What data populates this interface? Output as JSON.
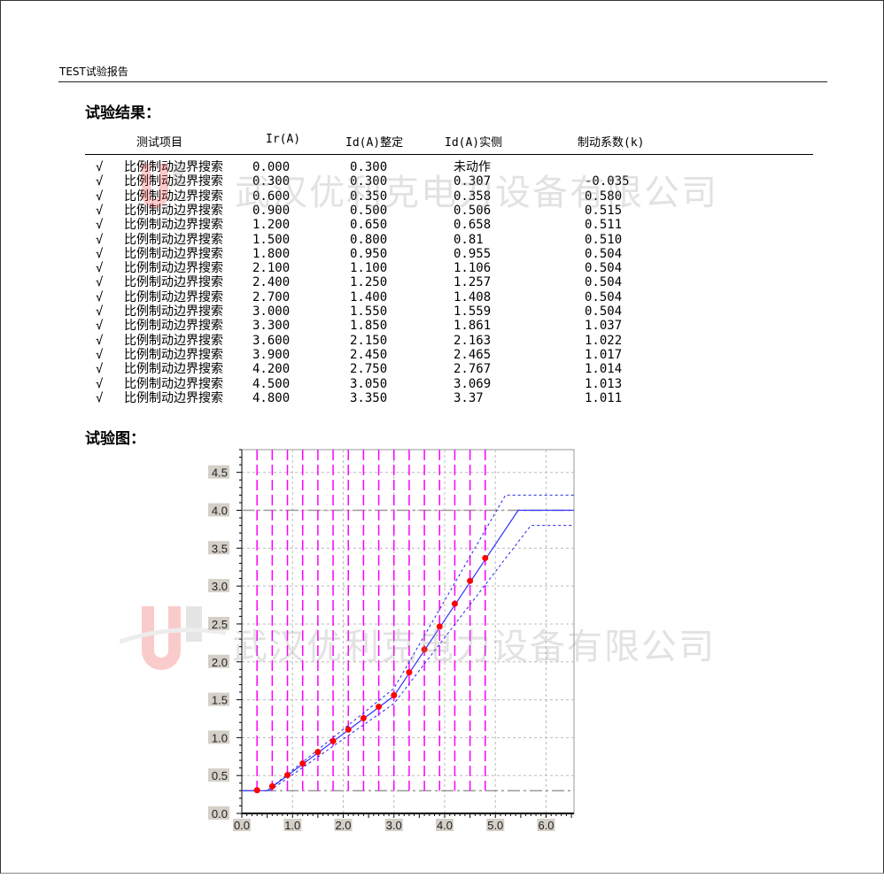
{
  "header": {
    "title": "TEST试验报告"
  },
  "results": {
    "heading": "试验结果：",
    "columns": [
      "测试项目",
      "Ir(A)",
      "Id(A)整定",
      "Id(A)实侧",
      "制动系数(k)"
    ],
    "rows": [
      {
        "check": "√",
        "item": "比例制动边界搜索",
        "ir": "0.000",
        "id_set": "0.300",
        "id_actual": "未动作",
        "k": ""
      },
      {
        "check": "√",
        "item": "比例制动边界搜索",
        "ir": "0.300",
        "id_set": "0.300",
        "id_actual": "0.307",
        "k": "-0.035"
      },
      {
        "check": "√",
        "item": "比例制动边界搜索",
        "ir": "0.600",
        "id_set": "0.350",
        "id_actual": "0.358",
        "k": "0.580"
      },
      {
        "check": "√",
        "item": "比例制动边界搜索",
        "ir": "0.900",
        "id_set": "0.500",
        "id_actual": "0.506",
        "k": "0.515"
      },
      {
        "check": "√",
        "item": "比例制动边界搜索",
        "ir": "1.200",
        "id_set": "0.650",
        "id_actual": "0.658",
        "k": "0.511"
      },
      {
        "check": "√",
        "item": "比例制动边界搜索",
        "ir": "1.500",
        "id_set": "0.800",
        "id_actual": "0.81",
        "k": "0.510"
      },
      {
        "check": "√",
        "item": "比例制动边界搜索",
        "ir": "1.800",
        "id_set": "0.950",
        "id_actual": "0.955",
        "k": "0.504"
      },
      {
        "check": "√",
        "item": "比例制动边界搜索",
        "ir": "2.100",
        "id_set": "1.100",
        "id_actual": "1.106",
        "k": "0.504"
      },
      {
        "check": "√",
        "item": "比例制动边界搜索",
        "ir": "2.400",
        "id_set": "1.250",
        "id_actual": "1.257",
        "k": "0.504"
      },
      {
        "check": "√",
        "item": "比例制动边界搜索",
        "ir": "2.700",
        "id_set": "1.400",
        "id_actual": "1.408",
        "k": "0.504"
      },
      {
        "check": "√",
        "item": "比例制动边界搜索",
        "ir": "3.000",
        "id_set": "1.550",
        "id_actual": "1.559",
        "k": "0.504"
      },
      {
        "check": "√",
        "item": "比例制动边界搜索",
        "ir": "3.300",
        "id_set": "1.850",
        "id_actual": "1.861",
        "k": "1.037"
      },
      {
        "check": "√",
        "item": "比例制动边界搜索",
        "ir": "3.600",
        "id_set": "2.150",
        "id_actual": "2.163",
        "k": "1.022"
      },
      {
        "check": "√",
        "item": "比例制动边界搜索",
        "ir": "3.900",
        "id_set": "2.450",
        "id_actual": "2.465",
        "k": "1.017"
      },
      {
        "check": "√",
        "item": "比例制动边界搜索",
        "ir": "4.200",
        "id_set": "2.750",
        "id_actual": "2.767",
        "k": "1.014"
      },
      {
        "check": "√",
        "item": "比例制动边界搜索",
        "ir": "4.500",
        "id_set": "3.050",
        "id_actual": "3.069",
        "k": "1.013"
      },
      {
        "check": "√",
        "item": "比例制动边界搜索",
        "ir": "4.800",
        "id_set": "3.350",
        "id_actual": "3.37",
        "k": "1.011"
      }
    ]
  },
  "chart_section": {
    "heading": "试验图："
  },
  "watermark": {
    "text": "武汉优利克电力设备有限公司"
  },
  "chart_data": {
    "type": "line",
    "title": "",
    "xlabel": "",
    "ylabel": "",
    "xlim": [
      0,
      6.55
    ],
    "ylim": [
      0,
      4.8
    ],
    "xticks": [
      "0.0",
      "1.0",
      "2.0",
      "3.0",
      "4.0",
      "5.0",
      "6.0"
    ],
    "yticks": [
      "0.0",
      "0.5",
      "1.0",
      "1.5",
      "2.0",
      "2.5",
      "3.0",
      "3.5",
      "4.0",
      "4.5"
    ],
    "grid": true,
    "colors": {
      "characteristic": "#3333ff",
      "tolerance": "#2222ee",
      "points": "#ff0000",
      "test_lines": "#ff00ff",
      "reference": "#999999"
    },
    "characteristic": {
      "x": [
        0,
        0.5,
        3.0,
        5.45,
        6.55
      ],
      "y": [
        0.3,
        0.3,
        1.55,
        4.0,
        4.0
      ]
    },
    "upper_band": {
      "x": [
        0.5,
        3.0,
        5.2,
        6.55
      ],
      "y": [
        0.3,
        1.65,
        4.2,
        4.2
      ]
    },
    "lower_band": {
      "x": [
        0.55,
        3.0,
        5.7,
        6.55
      ],
      "y": [
        0.3,
        1.45,
        3.8,
        3.8
      ]
    },
    "reference_lines_y": [
      0.3,
      4.0
    ],
    "test_lines_x": [
      0.3,
      0.6,
      0.9,
      1.2,
      1.5,
      1.8,
      2.1,
      2.4,
      2.7,
      3.0,
      3.3,
      3.6,
      3.9,
      4.2,
      4.5,
      4.8
    ],
    "points": {
      "x": [
        0.3,
        0.6,
        0.9,
        1.2,
        1.5,
        1.8,
        2.1,
        2.4,
        2.7,
        3.0,
        3.3,
        3.6,
        3.9,
        4.2,
        4.5,
        4.8
      ],
      "y": [
        0.307,
        0.358,
        0.506,
        0.658,
        0.81,
        0.955,
        1.106,
        1.257,
        1.408,
        1.559,
        1.861,
        2.163,
        2.465,
        2.767,
        3.069,
        3.37
      ]
    }
  }
}
